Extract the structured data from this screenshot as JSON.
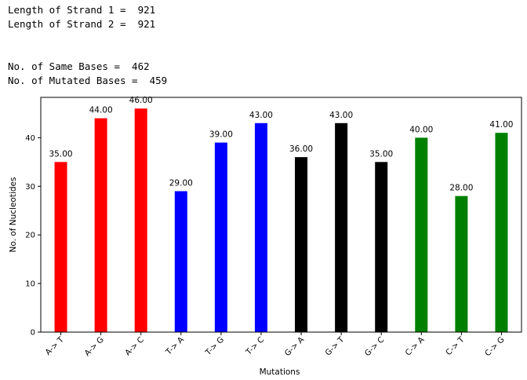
{
  "console": {
    "lines_top": [
      "Length of Strand 1 =  921",
      "Length of Strand 2 =  921"
    ],
    "lines_bottom": [
      "No. of Same Bases =  462",
      "No. of Mutated Bases =  459"
    ]
  },
  "chart_data": {
    "type": "bar",
    "title": "",
    "xlabel": "Mutations",
    "ylabel": "No. of Nucleotides",
    "categories": [
      "A-> T",
      "A-> G",
      "A-> C",
      "T-> A",
      "T-> G",
      "T-> C",
      "G-> A",
      "G-> T",
      "G-> C",
      "C-> A",
      "C-> T",
      "C-> G"
    ],
    "values": [
      35,
      44,
      46,
      29,
      39,
      43,
      36,
      43,
      35,
      40,
      28,
      41
    ],
    "data_labels": [
      "35.00",
      "44.00",
      "46.00",
      "29.00",
      "39.00",
      "43.00",
      "36.00",
      "43.00",
      "35.00",
      "40.00",
      "28.00",
      "41.00"
    ],
    "colors": [
      "#ff0000",
      "#ff0000",
      "#ff0000",
      "#0000ff",
      "#0000ff",
      "#0000ff",
      "#000000",
      "#000000",
      "#000000",
      "#008000",
      "#008000",
      "#008000"
    ],
    "ylim": [
      0,
      48.3
    ],
    "yticks": [
      0,
      10,
      20,
      30,
      40
    ],
    "grid": false,
    "legend": "none"
  }
}
